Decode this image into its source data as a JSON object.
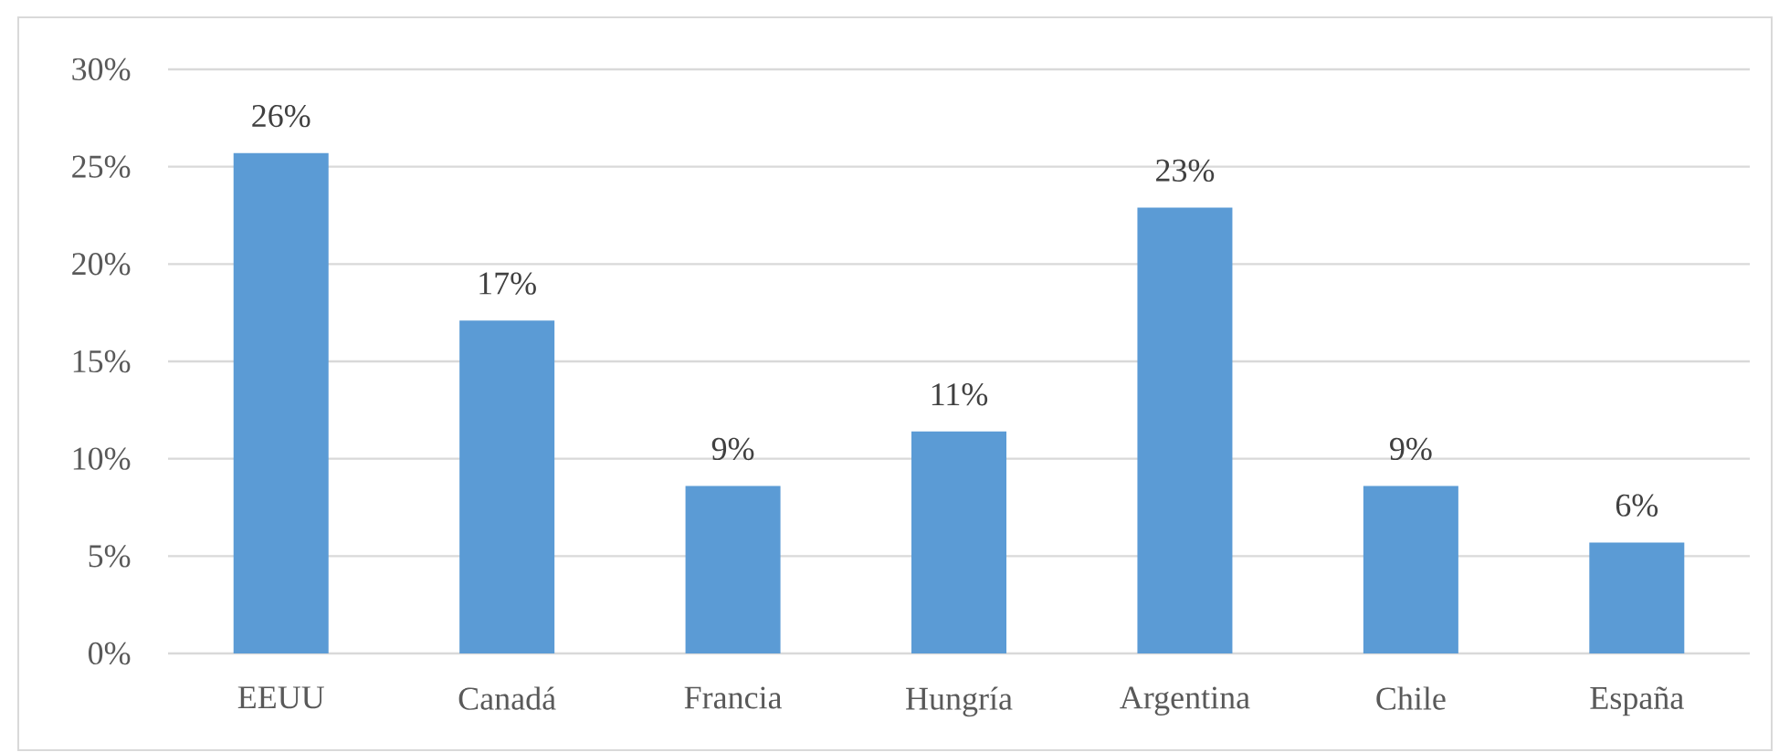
{
  "chart_data": {
    "type": "bar",
    "categories": [
      "EEUU",
      "Canadá",
      "Francia",
      "Hungría",
      "Argentina",
      "Chile",
      "España"
    ],
    "values": [
      25.7,
      17.1,
      8.6,
      11.4,
      22.9,
      8.6,
      5.7
    ],
    "value_labels": [
      "26%",
      "17%",
      "9%",
      "11%",
      "23%",
      "9%",
      "6%"
    ],
    "color": "#5b9bd5",
    "ylim": [
      0,
      30
    ],
    "yticks": [
      {
        "value": 0,
        "label": "0%"
      },
      {
        "value": 5,
        "label": "5%"
      },
      {
        "value": 10,
        "label": "10%"
      },
      {
        "value": 15,
        "label": "15%"
      },
      {
        "value": 20,
        "label": "20%"
      },
      {
        "value": 25,
        "label": "25%"
      },
      {
        "value": 30,
        "label": "30%"
      }
    ],
    "grid": "y"
  }
}
